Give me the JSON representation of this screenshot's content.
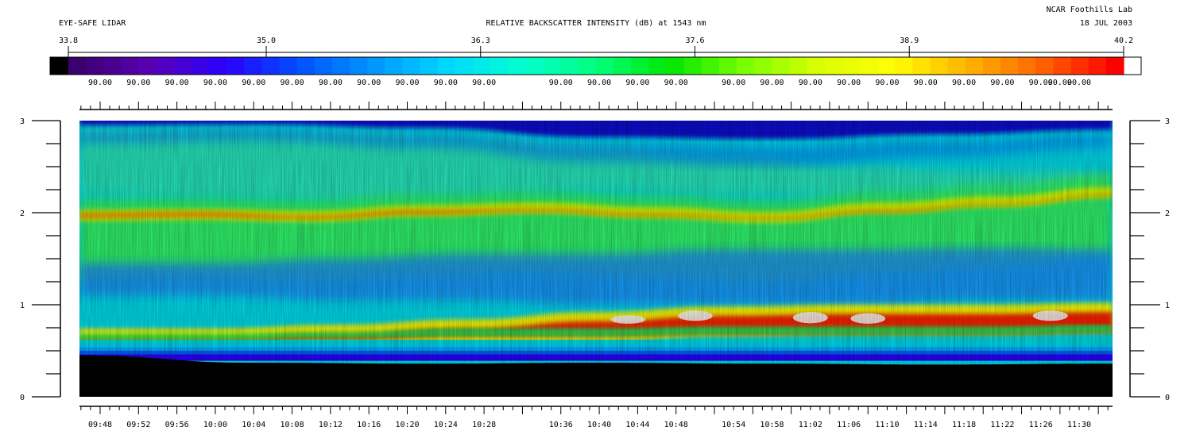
{
  "header": {
    "left_title": "EYE-SAFE LIDAR",
    "center_title": "RELATIVE BACKSCATTER INTENSITY (dB) at 1543 nm",
    "org": "NCAR Foothills Lab",
    "date": "18 JUL 2003"
  },
  "colorbar": {
    "ticks": [
      "33.8",
      "35.0",
      "36.3",
      "37.6",
      "38.9",
      "40.2"
    ],
    "range": [
      33.8,
      40.2
    ],
    "sub_labels": [
      "90.00",
      "90.00",
      "90.00",
      "90.00",
      "90.00",
      "90.00",
      "90.00",
      "90.00",
      "90.00",
      "90.00",
      "90.00",
      "90.00",
      "90.00",
      "90.00",
      "90.00",
      "90.00",
      "90.00",
      "90.00",
      "90.00",
      "90.00",
      "90.00",
      "90.00",
      "90.00",
      "90.00",
      "90.00",
      "90.00"
    ]
  },
  "chart_data": {
    "type": "heatmap",
    "title": "RELATIVE BACKSCATTER INTENSITY (dB) at 1543 nm",
    "xlabel": "",
    "ylabel": "",
    "x_tick_labels": [
      "09:48",
      "09:52",
      "09:56",
      "10:00",
      "10:04",
      "10:08",
      "10:12",
      "10:16",
      "10:20",
      "10:24",
      "10:28",
      "10:36",
      "10:40",
      "10:44",
      "10:48",
      "10:54",
      "10:58",
      "11:02",
      "11:06",
      "11:10",
      "11:14",
      "11:18",
      "11:22",
      "11:26",
      "11:30"
    ],
    "x_tick_minutes": [
      588,
      592,
      596,
      600,
      604,
      608,
      612,
      616,
      620,
      624,
      628,
      636,
      640,
      644,
      648,
      654,
      658,
      662,
      666,
      670,
      674,
      678,
      682,
      686,
      690
    ],
    "y_tick_labels": [
      "0",
      "1",
      "2",
      "3"
    ],
    "ylim": [
      0,
      3
    ],
    "value_range": [
      33.8,
      40.2
    ],
    "colormap": [
      "#000000",
      "#3a006e",
      "#5a00b4",
      "#2a00ff",
      "#0050ff",
      "#0096ff",
      "#00d8ff",
      "#00ffd0",
      "#00ff80",
      "#00e600",
      "#78ff00",
      "#d8ff00",
      "#ffff00",
      "#ffb400",
      "#ff6400",
      "#ff0000",
      "#ffffff"
    ],
    "layers": {
      "ground_height": [
        0.45,
        0.37,
        0.36,
        0.37,
        0.36,
        0.35,
        0.36
      ],
      "mixed_layer_top": [
        0.62,
        0.62,
        0.66,
        0.72,
        0.8,
        0.86,
        0.88,
        0.88,
        0.9
      ],
      "elevated_layer_height": [
        1.97,
        1.98,
        1.96,
        2.02,
        2.05,
        2.0,
        1.95,
        2.05,
        2.12,
        2.22
      ],
      "upper_blue_region_start_hhmm": "10:20"
    }
  }
}
